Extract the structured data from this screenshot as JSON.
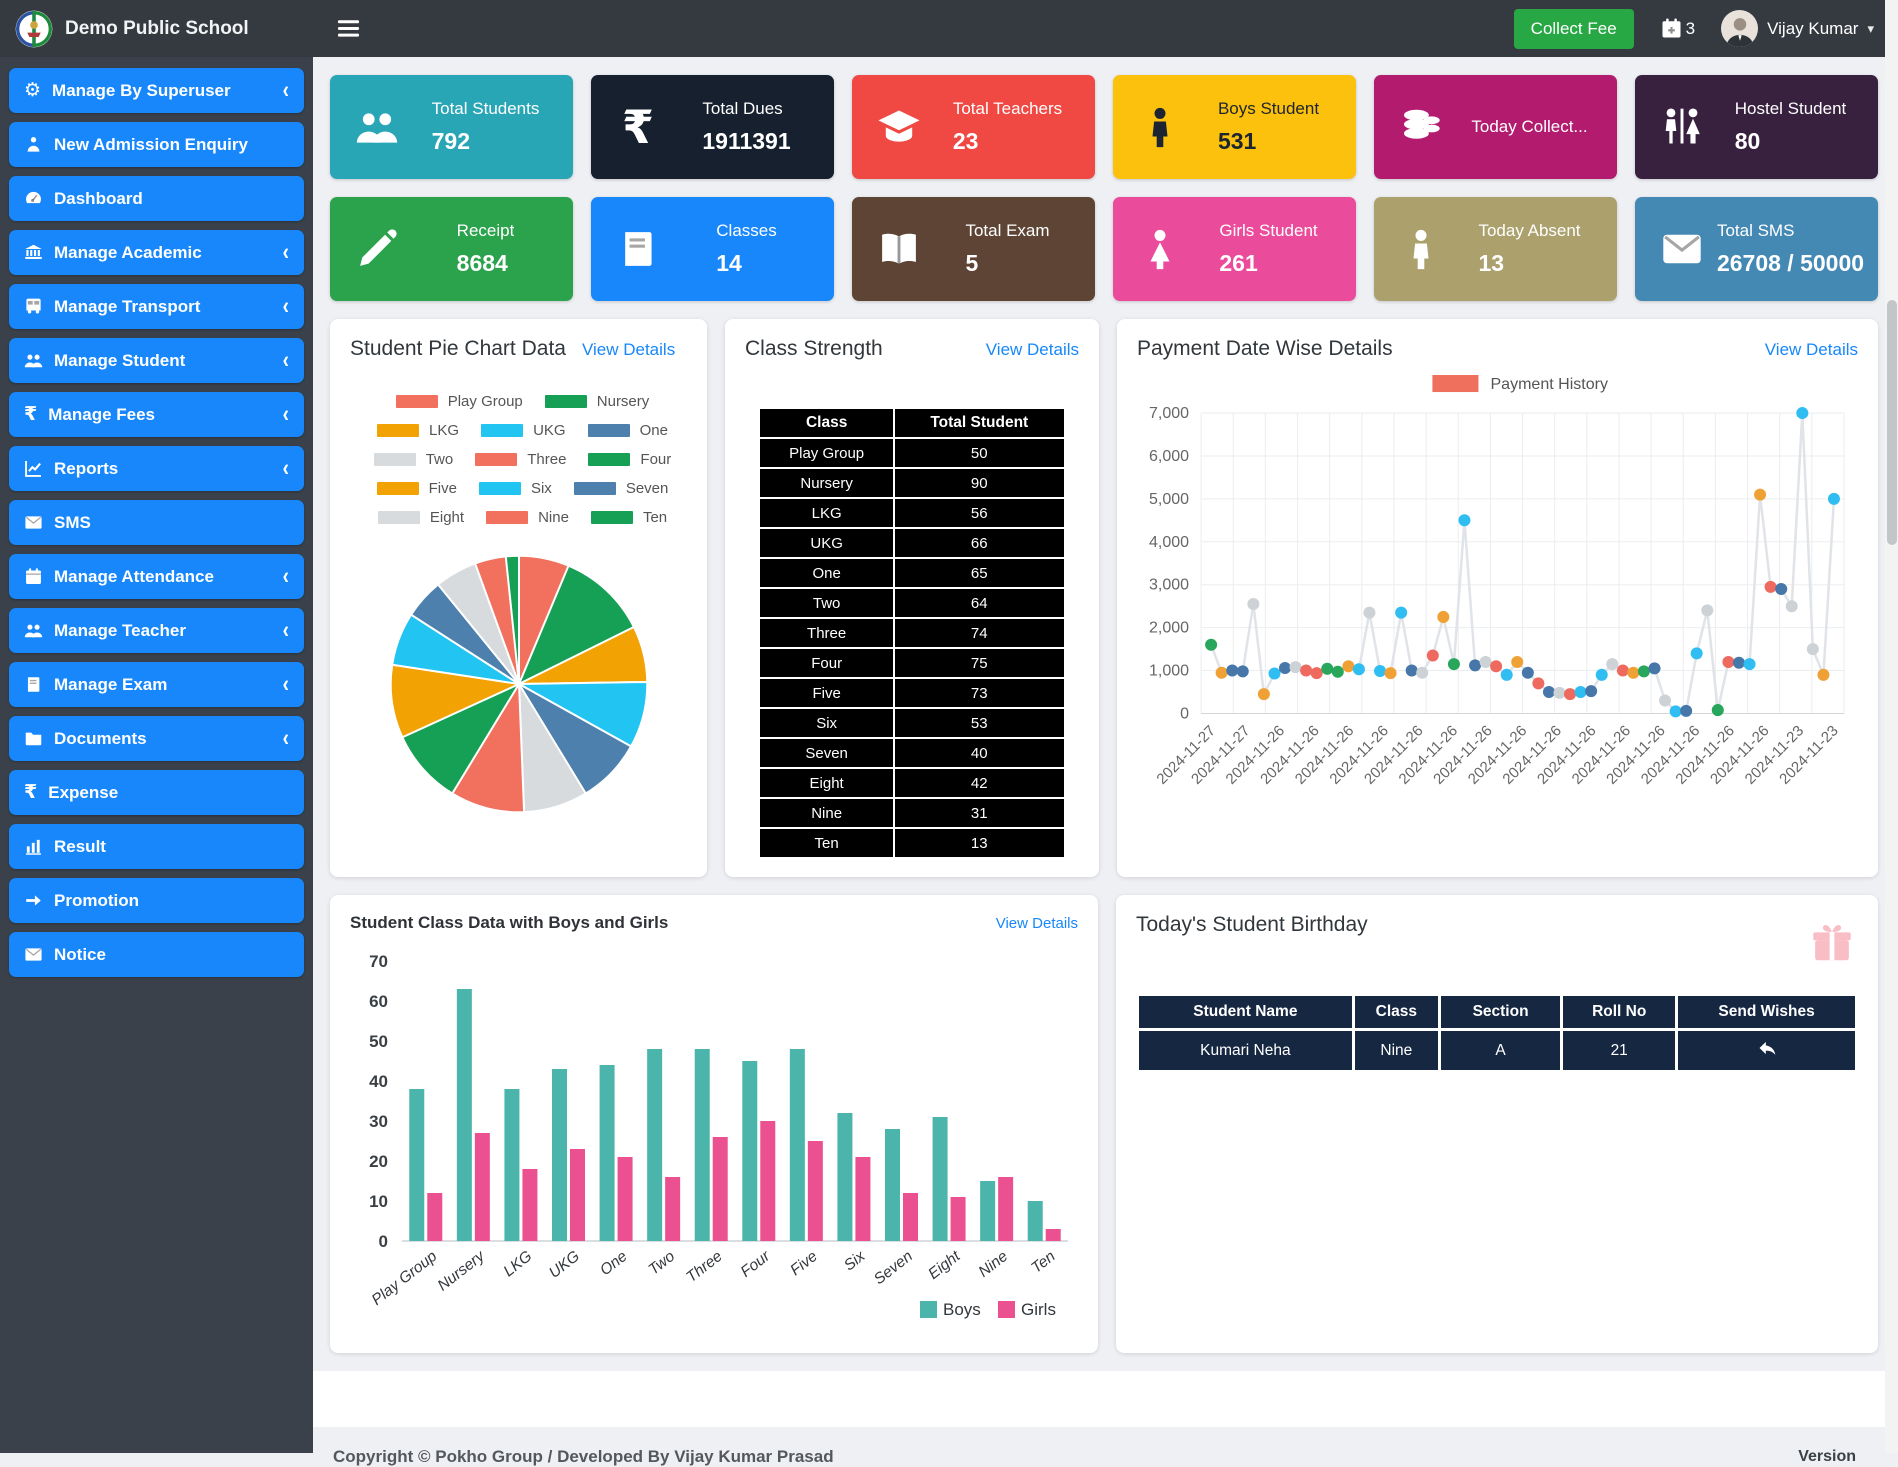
{
  "header": {
    "school_name": "Demo Public School",
    "collect_fee": "Collect Fee",
    "calendar_badge": "3",
    "user_name": "Vijay Kumar"
  },
  "sidebar": {
    "items": [
      {
        "label": "Manage By Superuser",
        "icon": "gear-icon",
        "expandable": true
      },
      {
        "label": "New Admission Enquiry",
        "icon": "user-icon",
        "expandable": false
      },
      {
        "label": "Dashboard",
        "icon": "dashboard-icon",
        "expandable": false
      },
      {
        "label": "Manage Academic",
        "icon": "bank-icon",
        "expandable": true
      },
      {
        "label": "Manage Transport",
        "icon": "bus-icon",
        "expandable": true
      },
      {
        "label": "Manage Student",
        "icon": "users-icon",
        "expandable": true
      },
      {
        "label": "Manage Fees",
        "icon": "rupee-icon",
        "expandable": true
      },
      {
        "label": "Reports",
        "icon": "chart-line-icon",
        "expandable": true
      },
      {
        "label": "SMS",
        "icon": "envelope-icon",
        "expandable": false
      },
      {
        "label": "Manage Attendance",
        "icon": "calendar-icon",
        "expandable": true
      },
      {
        "label": "Manage Teacher",
        "icon": "users-icon",
        "expandable": true
      },
      {
        "label": "Manage Exam",
        "icon": "book-icon",
        "expandable": true
      },
      {
        "label": "Documents",
        "icon": "folder-icon",
        "expandable": true
      },
      {
        "label": "Expense",
        "icon": "rupee-icon",
        "expandable": false
      },
      {
        "label": "Result",
        "icon": "bar-chart-icon",
        "expandable": false
      },
      {
        "label": "Promotion",
        "icon": "arrow-right-icon",
        "expandable": false
      },
      {
        "label": "Notice",
        "icon": "envelope-icon",
        "expandable": false
      }
    ]
  },
  "stat_cards": [
    {
      "label": "Total Students",
      "value": "792",
      "bg": "#29a6b6",
      "fg": "#ffffff",
      "icon": "users-icon"
    },
    {
      "label": "Total Dues",
      "value": "1911391",
      "bg": "#16202e",
      "fg": "#ffffff",
      "icon": "rupee-icon"
    },
    {
      "label": "Total Teachers",
      "value": "23",
      "bg": "#f04843",
      "fg": "#ffffff",
      "icon": "graduation-icon"
    },
    {
      "label": "Boys Student",
      "value": "531",
      "bg": "#fcc10c",
      "fg": "#1b2430",
      "icon": "male-icon"
    },
    {
      "label": "Today Collect...",
      "value": "",
      "bg": "#b21b6e",
      "fg": "#ffffff",
      "icon": "coins-icon"
    },
    {
      "label": "Hostel Student",
      "value": "80",
      "bg": "#38203f",
      "fg": "#ffffff",
      "icon": "restroom-icon"
    },
    {
      "label": "Receipt",
      "value": "8684",
      "bg": "#2ba24c",
      "fg": "#ffffff",
      "icon": "pen-icon"
    },
    {
      "label": "Classes",
      "value": "14",
      "bg": "#1787fb",
      "fg": "#ffffff",
      "icon": "book-icon"
    },
    {
      "label": "Total Exam",
      "value": "5",
      "bg": "#5d4434",
      "fg": "#ffffff",
      "icon": "open-book-icon"
    },
    {
      "label": "Girls Student",
      "value": "261",
      "bg": "#ea4b9b",
      "fg": "#ffffff",
      "icon": "female-icon"
    },
    {
      "label": "Today Absent",
      "value": "13",
      "bg": "#aca16d",
      "fg": "#ffffff",
      "icon": "male-icon"
    },
    {
      "label": "Total SMS",
      "value": "26708 / 50000",
      "bg": "#4389b3",
      "fg": "#ffffff",
      "icon": "envelope-icon"
    }
  ],
  "panels": {
    "pie": {
      "title": "Student Pie Chart Data",
      "link": "View Details"
    },
    "class_strength": {
      "title": "Class Strength",
      "link": "View Details",
      "columns": [
        "Class",
        "Total Student"
      ],
      "rows": [
        [
          "Play Group",
          "50"
        ],
        [
          "Nursery",
          "90"
        ],
        [
          "LKG",
          "56"
        ],
        [
          "UKG",
          "66"
        ],
        [
          "One",
          "65"
        ],
        [
          "Two",
          "64"
        ],
        [
          "Three",
          "74"
        ],
        [
          "Four",
          "75"
        ],
        [
          "Five",
          "73"
        ],
        [
          "Six",
          "53"
        ],
        [
          "Seven",
          "40"
        ],
        [
          "Eight",
          "42"
        ],
        [
          "Nine",
          "31"
        ],
        [
          "Ten",
          "13"
        ]
      ]
    },
    "payment": {
      "title": "Payment Date Wise Details",
      "link": "View Details",
      "legend": "Payment History"
    },
    "bar": {
      "title": "Student Class Data with Boys and Girls",
      "link": "View Details"
    },
    "birthday": {
      "title": "Today's Student Birthday",
      "columns": [
        "Student Name",
        "Class",
        "Section",
        "Roll No",
        "Send Wishes"
      ],
      "rows": [
        [
          "Kumari Neha",
          "Nine",
          "A",
          "21"
        ]
      ]
    }
  },
  "chart_data": [
    {
      "id": "pie",
      "type": "pie",
      "title": "Student Pie Chart Data",
      "labels": [
        "Play Group",
        "Nursery",
        "LKG",
        "UKG",
        "One",
        "Two",
        "Three",
        "Four",
        "Five",
        "Six",
        "Seven",
        "Eight",
        "Nine",
        "Ten"
      ],
      "values": [
        50,
        90,
        56,
        66,
        65,
        64,
        74,
        75,
        73,
        53,
        40,
        42,
        31,
        13
      ],
      "palette": [
        "#f1705e",
        "#16a056",
        "#f2a202",
        "#22c4f2",
        "#4e80ad",
        "#d8dbde"
      ],
      "legend_position": "top"
    },
    {
      "id": "payment",
      "type": "line",
      "title": "Payment Date Wise Details",
      "legend": "Payment History",
      "legend_color": "#f0705e",
      "ylim": [
        0,
        7000
      ],
      "y_tick_step": 1000,
      "grid": true,
      "x_tick_labels": [
        "2024-11-27",
        "2024-11-27",
        "2024-11-26",
        "2024-11-26",
        "2024-11-26",
        "2024-11-26",
        "2024-11-26",
        "2024-11-26",
        "2024-11-26",
        "2024-11-26",
        "2024-11-26",
        "2024-11-26",
        "2024-11-26",
        "2024-11-26",
        "2024-11-26",
        "2024-11-26",
        "2024-11-26",
        "2024-11-23",
        "2024-11-23"
      ],
      "point_palette": {
        "r": "#ee6a5f",
        "o": "#f0a136",
        "g": "#27a65c",
        "b": "#4677a8",
        "l": "#30bdf2",
        "y": "#cdd2d7"
      },
      "line_color": "#e0e3e7",
      "points": [
        [
          1600,
          "g"
        ],
        [
          950,
          "o"
        ],
        [
          1000,
          "b"
        ],
        [
          980,
          "b"
        ],
        [
          2550,
          "y"
        ],
        [
          450,
          "o"
        ],
        [
          930,
          "l"
        ],
        [
          1060,
          "b"
        ],
        [
          1080,
          "y"
        ],
        [
          1000,
          "r"
        ],
        [
          940,
          "r"
        ],
        [
          1040,
          "g"
        ],
        [
          970,
          "g"
        ],
        [
          1100,
          "o"
        ],
        [
          1030,
          "l"
        ],
        [
          2350,
          "y"
        ],
        [
          990,
          "l"
        ],
        [
          940,
          "o"
        ],
        [
          2350,
          "l"
        ],
        [
          1000,
          "b"
        ],
        [
          950,
          "y"
        ],
        [
          1350,
          "r"
        ],
        [
          2250,
          "o"
        ],
        [
          1150,
          "g"
        ],
        [
          4500,
          "l"
        ],
        [
          1120,
          "b"
        ],
        [
          1200,
          "y"
        ],
        [
          1100,
          "r"
        ],
        [
          900,
          "l"
        ],
        [
          1200,
          "o"
        ],
        [
          950,
          "b"
        ],
        [
          700,
          "r"
        ],
        [
          500,
          "b"
        ],
        [
          480,
          "y"
        ],
        [
          450,
          "r"
        ],
        [
          500,
          "l"
        ],
        [
          520,
          "b"
        ],
        [
          900,
          "l"
        ],
        [
          1150,
          "y"
        ],
        [
          1000,
          "r"
        ],
        [
          950,
          "o"
        ],
        [
          980,
          "g"
        ],
        [
          1050,
          "b"
        ],
        [
          300,
          "y"
        ],
        [
          50,
          "l"
        ],
        [
          60,
          "b"
        ],
        [
          1400,
          "l"
        ],
        [
          2400,
          "y"
        ],
        [
          80,
          "g"
        ],
        [
          1200,
          "r"
        ],
        [
          1180,
          "b"
        ],
        [
          1150,
          "l"
        ],
        [
          5100,
          "o"
        ],
        [
          2950,
          "r"
        ],
        [
          2900,
          "b"
        ],
        [
          2500,
          "y"
        ],
        [
          7000,
          "l"
        ],
        [
          1500,
          "y"
        ],
        [
          900,
          "o"
        ],
        [
          5000,
          "l"
        ]
      ]
    },
    {
      "id": "boys_girls",
      "type": "bar",
      "title": "Student Class Data with Boys and Girls",
      "categories": [
        "Play Group",
        "Nursery",
        "LKG",
        "UKG",
        "One",
        "Two",
        "Three",
        "Four",
        "Five",
        "Six",
        "Seven",
        "Eight",
        "Nine",
        "Ten"
      ],
      "series": [
        {
          "name": "Boys",
          "color": "#4cb5ab",
          "values": [
            38,
            63,
            38,
            43,
            44,
            48,
            48,
            45,
            48,
            32,
            28,
            31,
            15,
            10
          ]
        },
        {
          "name": "Girls",
          "color": "#eb5190",
          "values": [
            12,
            27,
            18,
            23,
            21,
            16,
            26,
            30,
            25,
            21,
            12,
            11,
            16,
            3
          ]
        }
      ],
      "ylim": [
        0,
        70
      ],
      "y_tick_step": 10,
      "legend_position": "bottom-right"
    }
  ],
  "footer": {
    "copyright": "Copyright © Pokho Group / Developed By Vijay Kumar Prasad",
    "version": "Version"
  }
}
